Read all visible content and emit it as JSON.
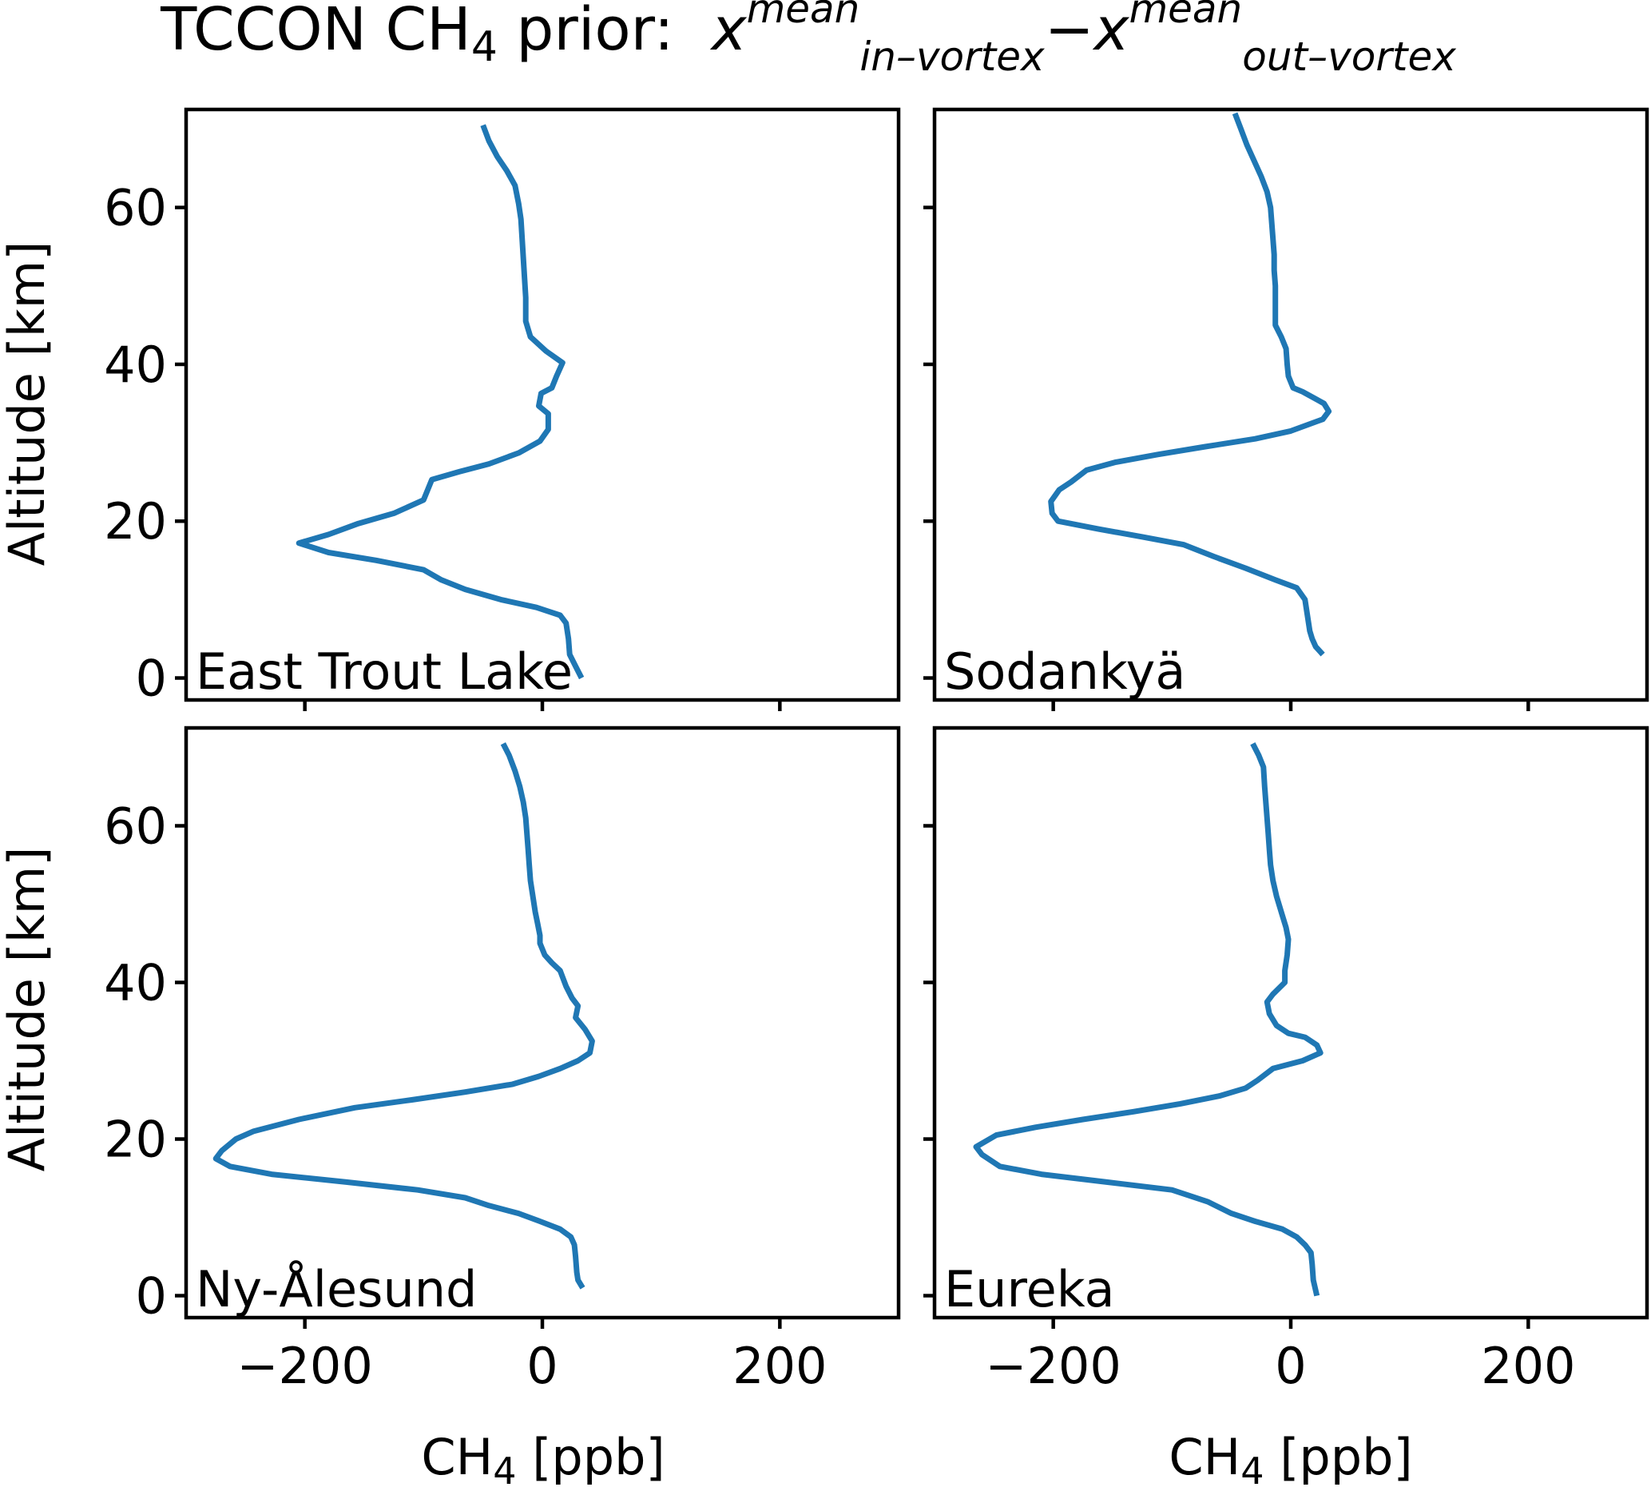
{
  "chart_data": {
    "type": "line",
    "title": {
      "prefix": "TCCON CH",
      "prefix_sub": "4",
      "middle": " prior:  ",
      "var": "x",
      "sup1": "mean",
      "sub1": "in–vortex",
      "minus": "−",
      "sup2": "mean",
      "sub2": "out–vortex"
    },
    "xlabel": {
      "main": "CH",
      "sub": "4",
      "rest": " [ppb]"
    },
    "ylabel": "Altitude [km]",
    "xlim": [
      -300,
      300
    ],
    "ylim": [
      -2.8,
      72.5
    ],
    "xticks": [
      -200,
      0,
      200
    ],
    "xtick_labels": [
      "−200",
      "0",
      "200"
    ],
    "yticks": [
      0,
      20,
      40,
      60
    ],
    "ytick_labels": [
      "0",
      "20",
      "40",
      "60"
    ],
    "grid": false,
    "panels": [
      {
        "site": "East Trout Lake",
        "points": [
          [
            -50,
            70.5
          ],
          [
            -45,
            68.5
          ],
          [
            -38,
            66.5
          ],
          [
            -30,
            64.7
          ],
          [
            -23,
            62.8
          ],
          [
            -20,
            60.5
          ],
          [
            -18,
            58.5
          ],
          [
            -17,
            56
          ],
          [
            -16,
            53.5
          ],
          [
            -15,
            51
          ],
          [
            -14,
            48.5
          ],
          [
            -14,
            46
          ],
          [
            -14,
            45.5
          ],
          [
            -10,
            43.5
          ],
          [
            3,
            41.7
          ],
          [
            17,
            40.2
          ],
          [
            12,
            38.5
          ],
          [
            8,
            37
          ],
          [
            -1,
            36.3
          ],
          [
            -3,
            34.7
          ],
          [
            5,
            33.7
          ],
          [
            5,
            31.7
          ],
          [
            -2,
            30.2
          ],
          [
            -20,
            28.7
          ],
          [
            -45,
            27.3
          ],
          [
            -70,
            26.3
          ],
          [
            -93,
            25.3
          ],
          [
            -100,
            22.7
          ],
          [
            -125,
            21
          ],
          [
            -155,
            19.7
          ],
          [
            -180,
            18.3
          ],
          [
            -205,
            17.2
          ],
          [
            -180,
            16
          ],
          [
            -140,
            15
          ],
          [
            -100,
            13.8
          ],
          [
            -85,
            12.5
          ],
          [
            -65,
            11.3
          ],
          [
            -35,
            10
          ],
          [
            -5,
            9
          ],
          [
            15,
            8
          ],
          [
            20,
            7
          ],
          [
            22,
            5
          ],
          [
            23,
            3
          ],
          [
            28,
            1.5
          ],
          [
            33,
            0
          ]
        ]
      },
      {
        "site": "Sodankyä",
        "points": [
          [
            -47,
            72
          ],
          [
            -42,
            70
          ],
          [
            -37,
            68
          ],
          [
            -31,
            66
          ],
          [
            -25,
            64
          ],
          [
            -20,
            62
          ],
          [
            -17,
            60
          ],
          [
            -16,
            58
          ],
          [
            -15,
            56
          ],
          [
            -14,
            54
          ],
          [
            -14,
            52
          ],
          [
            -13,
            50
          ],
          [
            -13,
            48
          ],
          [
            -13,
            46
          ],
          [
            -13,
            45
          ],
          [
            -8,
            43.5
          ],
          [
            -4,
            42
          ],
          [
            -3,
            40
          ],
          [
            -2,
            38.5
          ],
          [
            2,
            37
          ],
          [
            10,
            36.5
          ],
          [
            22,
            35.5
          ],
          [
            28,
            35
          ],
          [
            32,
            34
          ],
          [
            27,
            33
          ],
          [
            0,
            31.5
          ],
          [
            -30,
            30.5
          ],
          [
            -72,
            29.5
          ],
          [
            -112,
            28.5
          ],
          [
            -148,
            27.5
          ],
          [
            -172,
            26.5
          ],
          [
            -185,
            25
          ],
          [
            -195,
            24
          ],
          [
            -202,
            22.5
          ],
          [
            -201,
            21
          ],
          [
            -196,
            20
          ],
          [
            -162,
            19
          ],
          [
            -125,
            18
          ],
          [
            -90,
            17
          ],
          [
            -65,
            15.5
          ],
          [
            -38,
            14
          ],
          [
            -13,
            12.5
          ],
          [
            5,
            11.5
          ],
          [
            12,
            10
          ],
          [
            14,
            8
          ],
          [
            16,
            6
          ],
          [
            18,
            5
          ],
          [
            21,
            4
          ],
          [
            27,
            3
          ]
        ]
      },
      {
        "site": "Ny-Ålesund",
        "points": [
          [
            -33,
            70.5
          ],
          [
            -28,
            69
          ],
          [
            -23,
            67
          ],
          [
            -19,
            65
          ],
          [
            -16,
            63
          ],
          [
            -14,
            61
          ],
          [
            -13,
            59
          ],
          [
            -12,
            57
          ],
          [
            -11,
            55
          ],
          [
            -10,
            53
          ],
          [
            -8,
            51
          ],
          [
            -6,
            49
          ],
          [
            -4,
            47.5
          ],
          [
            -2,
            46
          ],
          [
            -2,
            45
          ],
          [
            2,
            43.5
          ],
          [
            8,
            42.5
          ],
          [
            15,
            41.5
          ],
          [
            20,
            39.5
          ],
          [
            25,
            38
          ],
          [
            30,
            37
          ],
          [
            28,
            35.5
          ],
          [
            36,
            34
          ],
          [
            42,
            32.5
          ],
          [
            40,
            31
          ],
          [
            30,
            30
          ],
          [
            15,
            29
          ],
          [
            -3,
            28
          ],
          [
            -25,
            27
          ],
          [
            -65,
            26
          ],
          [
            -110,
            25
          ],
          [
            -158,
            24
          ],
          [
            -205,
            22.5
          ],
          [
            -243,
            21
          ],
          [
            -258,
            20
          ],
          [
            -270,
            18.5
          ],
          [
            -275,
            17.5
          ],
          [
            -263,
            16.5
          ],
          [
            -228,
            15.5
          ],
          [
            -165,
            14.5
          ],
          [
            -105,
            13.5
          ],
          [
            -65,
            12.5
          ],
          [
            -45,
            11.5
          ],
          [
            -20,
            10.5
          ],
          [
            -2,
            9.5
          ],
          [
            15,
            8.5
          ],
          [
            24,
            7.5
          ],
          [
            27,
            6.5
          ],
          [
            28,
            5
          ],
          [
            29,
            3
          ],
          [
            30,
            2
          ],
          [
            34,
            1
          ]
        ]
      },
      {
        "site": "Eureka",
        "points": [
          [
            -32,
            70.5
          ],
          [
            -27,
            69
          ],
          [
            -23,
            67.5
          ],
          [
            -22,
            65
          ],
          [
            -21,
            63
          ],
          [
            -20,
            61
          ],
          [
            -19,
            59
          ],
          [
            -18,
            57
          ],
          [
            -17,
            55
          ],
          [
            -15,
            53
          ],
          [
            -12,
            51
          ],
          [
            -8,
            49
          ],
          [
            -4,
            47
          ],
          [
            -2,
            45.5
          ],
          [
            -3,
            43.5
          ],
          [
            -5,
            41.5
          ],
          [
            -5,
            40
          ],
          [
            -15,
            38.5
          ],
          [
            -20,
            37.5
          ],
          [
            -18,
            36
          ],
          [
            -12,
            34.5
          ],
          [
            -2,
            33.5
          ],
          [
            12,
            33
          ],
          [
            22,
            32
          ],
          [
            25,
            31
          ],
          [
            10,
            30
          ],
          [
            -15,
            29
          ],
          [
            -28,
            27.5
          ],
          [
            -38,
            26.5
          ],
          [
            -60,
            25.5
          ],
          [
            -93,
            24.5
          ],
          [
            -132,
            23.5
          ],
          [
            -175,
            22.5
          ],
          [
            -215,
            21.5
          ],
          [
            -248,
            20.5
          ],
          [
            -265,
            19
          ],
          [
            -260,
            18
          ],
          [
            -245,
            16.5
          ],
          [
            -210,
            15.5
          ],
          [
            -155,
            14.5
          ],
          [
            -100,
            13.5
          ],
          [
            -70,
            12
          ],
          [
            -50,
            10.5
          ],
          [
            -30,
            9.5
          ],
          [
            -7,
            8.5
          ],
          [
            5,
            7.5
          ],
          [
            12,
            6.5
          ],
          [
            17,
            5.5
          ],
          [
            18,
            4
          ],
          [
            19,
            2
          ],
          [
            22,
            0
          ]
        ]
      }
    ]
  }
}
